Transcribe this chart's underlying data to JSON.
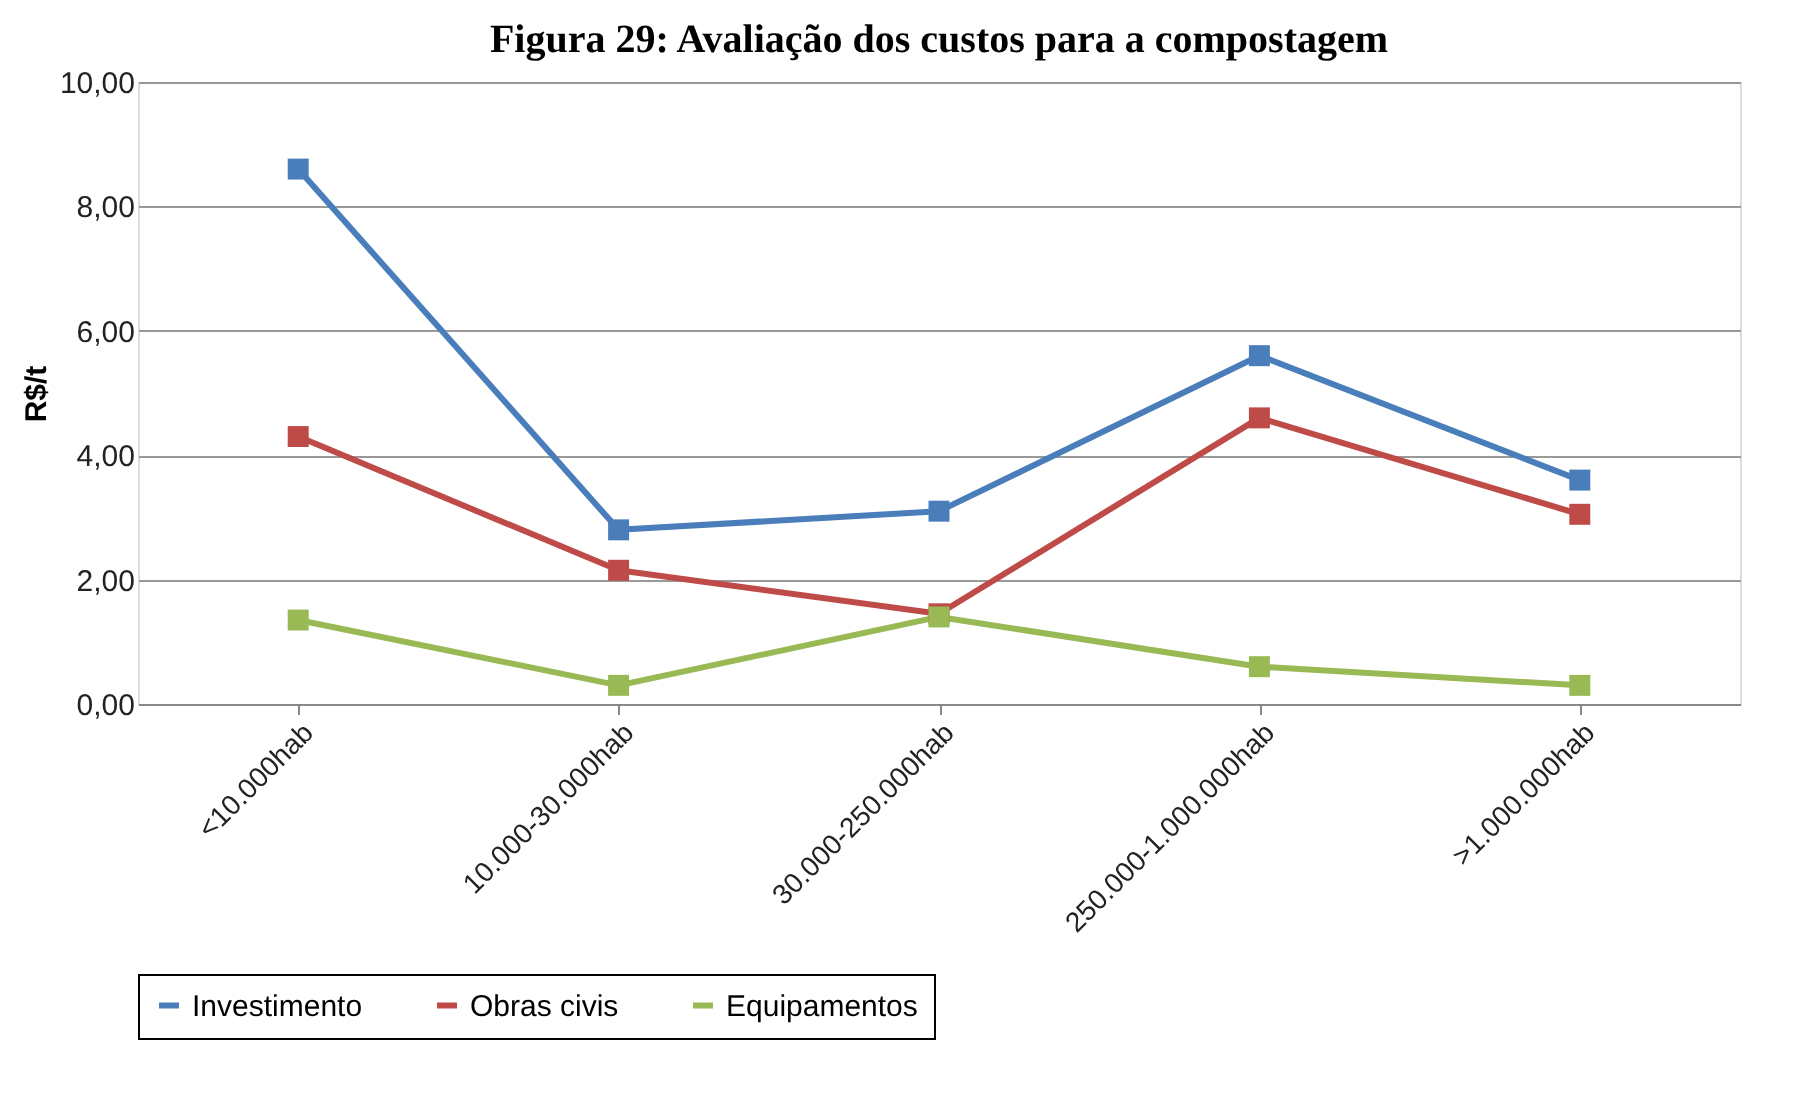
{
  "chart_data": {
    "type": "line",
    "title": "Figura 29: Avaliação dos custos para a compostagem",
    "ylabel": "R$/t",
    "categories": [
      "<10.000hab",
      "10.000-30.000hab",
      "30.000-250.000hab",
      "250.000-1.000.000hab",
      ">1.000.000hab"
    ],
    "series": [
      {
        "name": "Investimento",
        "color": "#4a7ebb",
        "values": [
          8.6,
          2.8,
          3.1,
          5.6,
          3.6
        ]
      },
      {
        "name": "Obras civis",
        "color": "#be4b48",
        "values": [
          4.3,
          2.15,
          1.45,
          4.6,
          3.05
        ]
      },
      {
        "name": "Equipamentos",
        "color": "#98b954",
        "values": [
          1.35,
          0.3,
          1.4,
          0.6,
          0.3
        ]
      }
    ],
    "ylim": [
      0,
      10
    ],
    "yticks": [
      {
        "value": 0,
        "label": "0,00"
      },
      {
        "value": 2,
        "label": "2,00"
      },
      {
        "value": 4,
        "label": "4,00"
      },
      {
        "value": 6,
        "label": "6,00"
      },
      {
        "value": 8,
        "label": "8,00"
      },
      {
        "value": 10,
        "label": "10,00"
      }
    ],
    "grid": "y",
    "legend": "bottom",
    "marker": "square",
    "line_style": "solid"
  }
}
